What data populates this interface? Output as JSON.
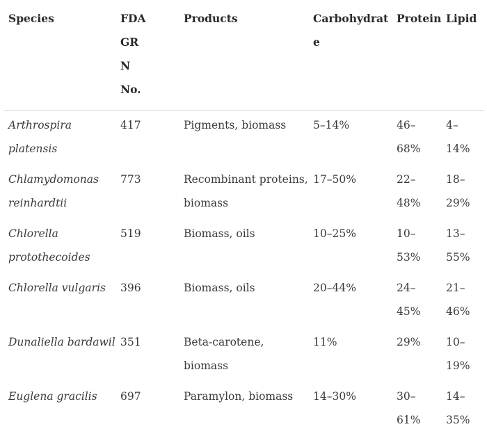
{
  "table": {
    "headers": {
      "species": "Species",
      "fda": "FDA GRN No.",
      "products": "Products",
      "carbohydrate": "Carbohydrate",
      "protein": "Protein",
      "lipid": "Lipid"
    },
    "rows": [
      {
        "species": "Arthrospira platensis",
        "fda": "417",
        "products": "Pigments, biomass",
        "carbohydrate": "5–14%",
        "protein": "46–68%",
        "lipid": "4–14%"
      },
      {
        "species": "Chlamydomonas reinhardtii",
        "fda": "773",
        "products": "Recombinant proteins, biomass",
        "carbohydrate": "17–50%",
        "protein": "22–48%",
        "lipid": "18–29%"
      },
      {
        "species": "Chlorella protothecoides",
        "fda": "519",
        "products": "Biomass, oils",
        "carbohydrate": "10–25%",
        "protein": "10–53%",
        "lipid": "13–55%"
      },
      {
        "species": "Chlorella vulgaris",
        "fda": "396",
        "products": "Biomass, oils",
        "carbohydrate": "20–44%",
        "protein": "24–45%",
        "lipid": "21–46%"
      },
      {
        "species": "Dunaliella bardawil",
        "fda": "351",
        "products": "Beta-carotene, biomass",
        "carbohydrate": "11%",
        "protein": "29%",
        "lipid": "10–19%"
      },
      {
        "species": "Euglena gracilis",
        "fda": "697",
        "products": "Paramylon, biomass",
        "carbohydrate": "14–30%",
        "protein": "30–61%",
        "lipid": "14–35%"
      }
    ]
  }
}
